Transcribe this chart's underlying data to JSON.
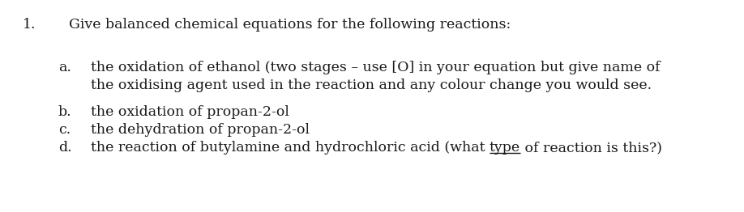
{
  "background_color": "#ffffff",
  "title_number": "1.",
  "title_text": "Give balanced chemical equations for the following reactions:",
  "title_fontsize": 12.5,
  "items": [
    {
      "label": "a.",
      "line1": "the oxidation of ethanol (two stages – use [O] in your equation but give name of",
      "line2": "the oxidising agent used in the reaction and any colour change you would see.",
      "fontsize": 12.5
    },
    {
      "label": "b.",
      "line1": "the oxidation of propan-2-ol",
      "fontsize": 12.5
    },
    {
      "label": "c.",
      "line1": "the dehydration of propan-2-ol",
      "fontsize": 12.5
    },
    {
      "label": "d.",
      "line1_before": "the reaction of butylamine and hydrochloric acid (what ",
      "line1_underline": "type",
      "line1_after": " of reaction is this?)",
      "fontsize": 12.5
    }
  ],
  "font_color": "#1a1a1a",
  "font_family": "DejaVu Serif",
  "fontsize": 12.5
}
